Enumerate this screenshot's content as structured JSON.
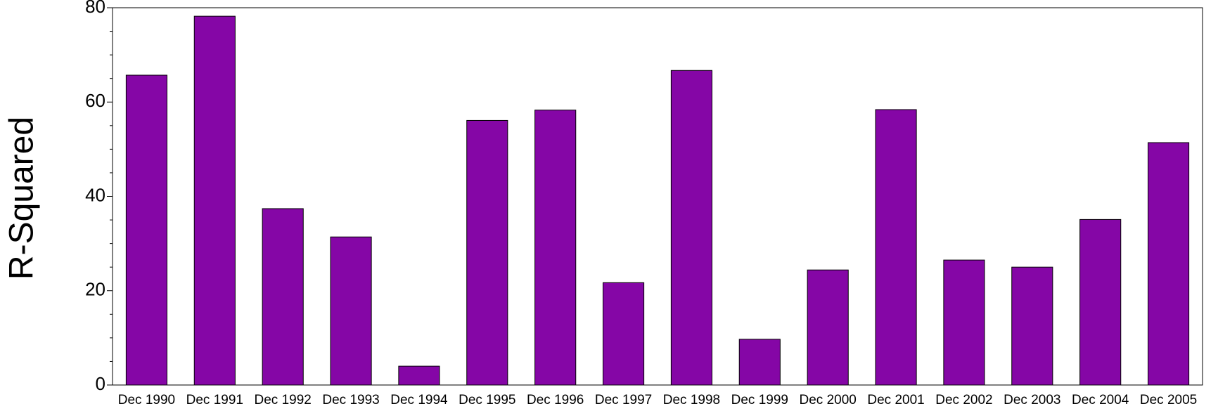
{
  "chart_data": {
    "type": "bar",
    "y_label": "R-Squared",
    "categories": [
      "Dec 1990",
      "Dec 1991",
      "Dec 1992",
      "Dec 1993",
      "Dec 1994",
      "Dec 1995",
      "Dec 1996",
      "Dec 1997",
      "Dec 1998",
      "Dec 1999",
      "Dec 2000",
      "Dec 2001",
      "Dec 2002",
      "Dec 2003",
      "Dec 2004",
      "Dec 2005"
    ],
    "values": [
      65.7,
      78.2,
      37.4,
      31.4,
      4.0,
      56.1,
      58.3,
      21.7,
      66.7,
      9.7,
      24.4,
      58.4,
      26.5,
      25.0,
      35.1,
      51.4
    ],
    "color": "#8506a6",
    "ylim": [
      0,
      80
    ],
    "yticks": [
      0,
      20,
      40,
      60,
      80
    ],
    "grid": false
  }
}
